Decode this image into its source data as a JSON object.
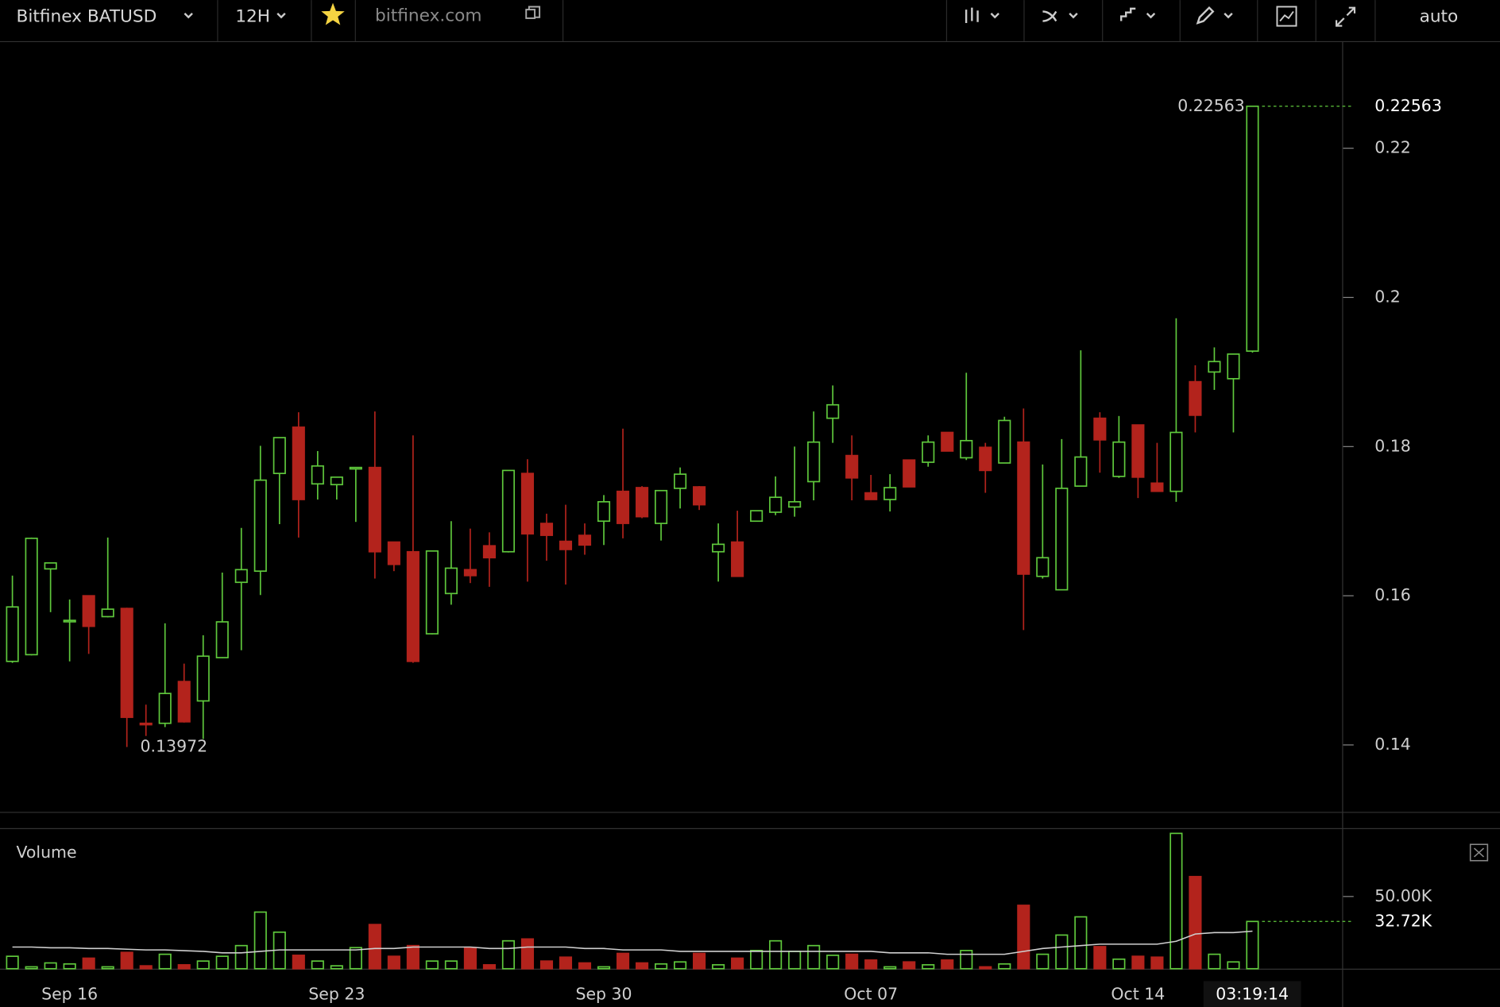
{
  "toolbar": {
    "symbol": "Bitfinex BATUSD",
    "interval": "12H",
    "site": "bitfinex.com",
    "scale": "auto"
  },
  "countdown": "03:19:14",
  "chart_data": [
    {
      "type": "candlestick",
      "x": [
        0,
        1,
        2,
        3,
        4,
        5,
        6,
        7,
        8,
        9,
        10,
        11,
        12,
        13,
        14,
        15,
        16,
        17,
        18,
        19,
        20,
        21,
        22,
        23,
        24,
        25,
        26,
        27,
        28,
        29,
        30,
        31,
        32,
        33,
        34,
        35,
        36,
        37,
        38,
        39,
        40,
        41,
        42,
        43,
        44,
        45,
        46,
        47,
        48,
        49,
        50,
        51,
        52,
        53,
        54,
        55,
        56,
        57,
        58,
        59,
        60,
        61,
        62,
        63,
        64,
        65
      ],
      "open": [
        0.1512,
        0.1521,
        0.1636,
        0.1566,
        0.16,
        0.1572,
        0.1583,
        0.1429,
        0.1429,
        0.1485,
        0.1459,
        0.1517,
        0.1618,
        0.1633,
        0.1764,
        0.1826,
        0.175,
        0.1749,
        0.177,
        0.1772,
        0.1672,
        0.1659,
        0.1549,
        0.1603,
        0.1635,
        0.1667,
        0.1659,
        0.1764,
        0.1697,
        0.1673,
        0.1681,
        0.17,
        0.174,
        0.1745,
        0.1697,
        0.1744,
        0.1746,
        0.1659,
        0.1672,
        0.17,
        0.1712,
        0.1719,
        0.1753,
        0.1838,
        0.1788,
        0.1738,
        0.1729,
        0.1782,
        0.1779,
        0.1819,
        0.1785,
        0.1799,
        0.1778,
        0.1806,
        0.1626,
        0.1608,
        0.1747,
        0.1838,
        0.176,
        0.1829,
        0.1751,
        0.174,
        0.1887,
        0.19,
        0.1891,
        0.1928
      ],
      "high": [
        0.1627,
        0.1678,
        0.1644,
        0.1595,
        0.16,
        0.1678,
        0.1584,
        0.1454,
        0.1563,
        0.1509,
        0.1547,
        0.1631,
        0.1691,
        0.1801,
        0.1812,
        0.1846,
        0.1794,
        0.1759,
        0.1772,
        0.1847,
        0.1672,
        0.1815,
        0.166,
        0.17,
        0.169,
        0.1685,
        0.1768,
        0.1783,
        0.171,
        0.1722,
        0.1697,
        0.1735,
        0.1824,
        0.1747,
        0.1741,
        0.1772,
        0.1747,
        0.1697,
        0.1714,
        0.1714,
        0.176,
        0.18,
        0.1847,
        0.1882,
        0.1815,
        0.1762,
        0.1763,
        0.1782,
        0.1815,
        0.1819,
        0.1899,
        0.1805,
        0.184,
        0.1851,
        0.1776,
        0.181,
        0.1929,
        0.1846,
        0.1841,
        0.1829,
        0.1805,
        0.1972,
        0.1909,
        0.1933,
        0.1924,
        0.22563
      ],
      "low": [
        0.151,
        0.152,
        0.1578,
        0.1512,
        0.1522,
        0.1571,
        0.13972,
        0.1412,
        0.1424,
        0.143,
        0.1408,
        0.1516,
        0.1527,
        0.1601,
        0.1696,
        0.1678,
        0.1729,
        0.1729,
        0.1699,
        0.1623,
        0.1633,
        0.151,
        0.1548,
        0.1588,
        0.1617,
        0.1612,
        0.1658,
        0.1619,
        0.1647,
        0.1615,
        0.1655,
        0.1668,
        0.1677,
        0.1704,
        0.1674,
        0.1717,
        0.1715,
        0.1619,
        0.1626,
        0.17,
        0.1708,
        0.1706,
        0.1728,
        0.1805,
        0.1728,
        0.1729,
        0.1713,
        0.1746,
        0.1773,
        0.1794,
        0.1782,
        0.1738,
        0.1778,
        0.1554,
        0.1623,
        0.1608,
        0.1747,
        0.1765,
        0.1758,
        0.1731,
        0.174,
        0.1726,
        0.1819,
        0.1876,
        0.1819,
        0.1926
      ],
      "close": [
        0.1585,
        0.1677,
        0.1644,
        0.1567,
        0.1559,
        0.1582,
        0.1437,
        0.1428,
        0.1469,
        0.1431,
        0.1519,
        0.1565,
        0.1635,
        0.1755,
        0.1812,
        0.1729,
        0.1774,
        0.1759,
        0.1772,
        0.1659,
        0.1642,
        0.1512,
        0.166,
        0.1637,
        0.1627,
        0.1651,
        0.1768,
        0.1683,
        0.1681,
        0.1662,
        0.1668,
        0.1726,
        0.1697,
        0.1706,
        0.1741,
        0.1763,
        0.1722,
        0.1669,
        0.1626,
        0.1714,
        0.1732,
        0.1726,
        0.1806,
        0.1856,
        0.1758,
        0.1729,
        0.1745,
        0.1746,
        0.1806,
        0.1794,
        0.1808,
        0.1768,
        0.1835,
        0.1629,
        0.1651,
        0.1744,
        0.1786,
        0.1809,
        0.1806,
        0.1759,
        0.174,
        0.1819,
        0.1842,
        0.1914,
        0.1924,
        0.22563
      ],
      "up_color": "#5fc83c",
      "down_color": "#b3231c",
      "xlim": [
        -0.65,
        69.7
      ],
      "ylim": [
        0.13115,
        0.2341
      ],
      "yticks": [
        0.14,
        0.16,
        0.18,
        0.2,
        0.22
      ],
      "xticks": [
        {
          "value": 3,
          "label": "Sep 16"
        },
        {
          "value": 17,
          "label": "Sep 23"
        },
        {
          "value": 31,
          "label": "Sep 30"
        },
        {
          "value": 45,
          "label": "Oct 07"
        },
        {
          "value": 59,
          "label": "Oct 14"
        }
      ]
    },
    {
      "type": "bar",
      "title": "Volume",
      "values": [
        8.6,
        1.3,
        4,
        3.3,
        7.3,
        1.3,
        11.3,
        2,
        10,
        2.7,
        5.3,
        8.6,
        16,
        39.2,
        25.3,
        9.3,
        5.3,
        2,
        14.6,
        30.6,
        8.6,
        16,
        5.3,
        5.3,
        14.6,
        2.7,
        19.3,
        20.6,
        5.3,
        8,
        4,
        1.3,
        10.6,
        4,
        3.3,
        4.7,
        10.6,
        2.7,
        7.3,
        12.6,
        19.3,
        12,
        16,
        9.3,
        10,
        6,
        1.3,
        4.7,
        2.7,
        6,
        12.6,
        1.3,
        3.3,
        43.9,
        10,
        23.3,
        35.9,
        15.3,
        6.6,
        8.6,
        8,
        93.7,
        63.8,
        10,
        4.7,
        32.72
      ],
      "ma": [
        15,
        15,
        14.5,
        14.5,
        14,
        14,
        13.5,
        13,
        13,
        12.5,
        12,
        11,
        11,
        12,
        13,
        13,
        13,
        13,
        13,
        14,
        14,
        15,
        15,
        15,
        15,
        14,
        14,
        15,
        15,
        15,
        14,
        14,
        13,
        13,
        13,
        12,
        12,
        12,
        12,
        12,
        12,
        12,
        12,
        12,
        12,
        12,
        11,
        11,
        11,
        10,
        10,
        10,
        10,
        12,
        14,
        15,
        16,
        17,
        17,
        17,
        17,
        19,
        24,
        25,
        25,
        26
      ],
      "ma_color": "#cfcfcf",
      "last_value_label": "32.72K",
      "ylim": [
        0,
        96
      ],
      "yticks": [
        {
          "value": 50,
          "label": "50.00K"
        }
      ]
    }
  ]
}
